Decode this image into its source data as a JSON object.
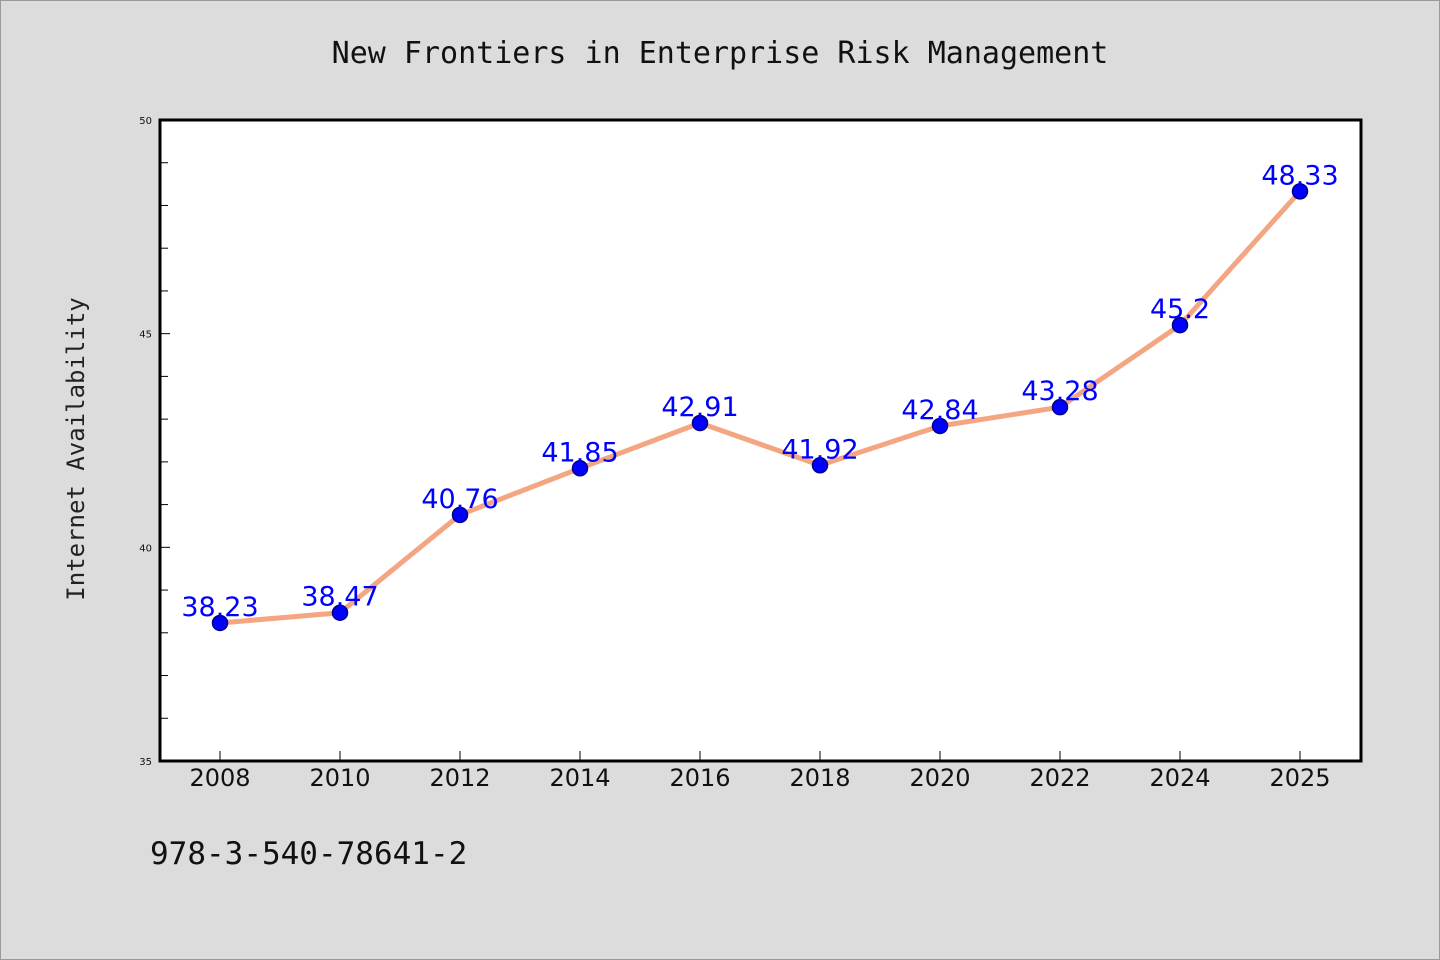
{
  "chart_data": {
    "type": "line",
    "title": "New Frontiers in Enterprise Risk Management",
    "xlabel": "",
    "ylabel": "Internet Availability",
    "categories": [
      "2008",
      "2010",
      "2012",
      "2014",
      "2016",
      "2018",
      "2020",
      "2022",
      "2024",
      "2025"
    ],
    "series": [
      {
        "values": [
          38.23,
          38.47,
          40.76,
          41.85,
          42.91,
          41.92,
          42.84,
          43.28,
          45.2,
          48.33
        ]
      }
    ],
    "data_labels": [
      "38.23",
      "38.47",
      "40.76",
      "41.85",
      "42.91",
      "41.92",
      "42.84",
      "43.28",
      "45.2",
      "48.33"
    ],
    "ylim": [
      35,
      50
    ],
    "y_ticks": [
      "35",
      "40",
      "45",
      "50"
    ],
    "grid": false,
    "legend": "none",
    "colors": {
      "line": "#f4a582",
      "marker": "#0000ff",
      "marker_edge": "#00008b",
      "label": "#0000ff",
      "background": "#dcdcdc",
      "plot_background": "#ffffff"
    }
  },
  "footer": {
    "isbn": "978-3-540-78641-2"
  }
}
